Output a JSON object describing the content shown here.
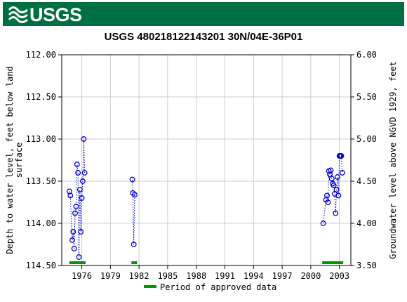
{
  "header": {
    "logo_text": "USGS",
    "logo_icon": "usgs-wave-icon",
    "banner_color": "#006f41"
  },
  "chart_data": {
    "type": "scatter",
    "title": "USGS 480218122143201 30N/04E-36P01",
    "ylabel_left": "Depth to water level, feet below land surface",
    "ylabel_right": "Groundwater level above NGVD 1929, feet",
    "ylim_left": [
      112.0,
      114.5
    ],
    "ylim_right": [
      3.5,
      6.0
    ],
    "y_left_inverted": true,
    "xlim": [
      1973.9,
      2004.2
    ],
    "x_ticks": [
      1976,
      1979,
      1982,
      1985,
      1988,
      1991,
      1994,
      1997,
      2000,
      2003
    ],
    "x_tick_labels": [
      "1976",
      "1979",
      "1982",
      "1985",
      "1988",
      "1991",
      "1994",
      "1997",
      "2000",
      "2003"
    ],
    "y_ticks_left": [
      112.0,
      112.5,
      113.0,
      113.5,
      114.0,
      114.5
    ],
    "y_tick_labels_left": [
      "112.00",
      "112.50",
      "113.00",
      "113.50",
      "114.00",
      "114.50"
    ],
    "y_ticks_right": [
      6.0,
      5.5,
      5.0,
      4.5,
      4.0,
      3.5
    ],
    "y_tick_labels_right": [
      "6.00",
      "5.50",
      "5.00",
      "4.50",
      "4.00",
      "3.50"
    ],
    "grid": true,
    "marker": "open-circle",
    "line_style": "dotted",
    "series_color": "#0000cc",
    "segments": [
      {
        "x": [
          1974.7,
          1974.8,
          1975.0,
          1975.1,
          1975.2,
          1975.3,
          1975.4,
          1975.5,
          1975.6,
          1975.7,
          1975.8,
          1975.9,
          1976.0,
          1976.1,
          1976.2,
          1976.3
        ],
        "y": [
          113.62,
          113.67,
          114.2,
          114.1,
          114.3,
          113.88,
          113.8,
          113.3,
          113.4,
          114.4,
          113.6,
          114.1,
          113.7,
          113.5,
          113.0,
          113.4
        ]
      },
      {
        "x": [
          1981.3,
          1981.35,
          1981.45,
          1981.55
        ],
        "y": [
          113.48,
          113.64,
          114.25,
          113.66
        ]
      },
      {
        "x": [
          2001.3,
          2001.6,
          2001.7,
          2001.8,
          2001.9,
          2002.0,
          2002.1,
          2002.2,
          2002.3,
          2002.4,
          2002.5,
          2002.6,
          2002.7,
          2002.8,
          2002.9,
          2003.0,
          2003.1,
          2003.2,
          2003.3
        ],
        "y": [
          114.0,
          113.72,
          113.67,
          113.75,
          113.38,
          113.42,
          113.37,
          113.47,
          113.53,
          113.55,
          113.65,
          113.88,
          113.6,
          113.45,
          113.67,
          113.2,
          113.2,
          113.2,
          113.4
        ]
      }
    ],
    "approved_periods": [
      [
        1974.7,
        1976.4
      ],
      [
        1981.2,
        1981.8
      ],
      [
        2001.2,
        2003.4
      ]
    ],
    "approved_color": "#009900",
    "legend_label": "Period of approved data",
    "legend_position": "bottom-center"
  }
}
